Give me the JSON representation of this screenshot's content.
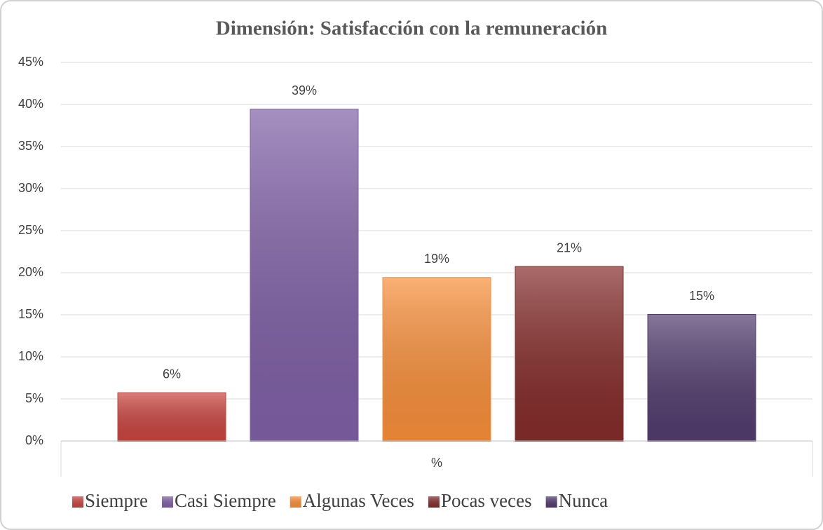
{
  "chart_data": {
    "type": "bar",
    "title": "Dimensión: Satisfacción con la remuneración",
    "categories": [
      "%"
    ],
    "series": [
      {
        "name": "Siempre",
        "color": "#c9443f",
        "values": [
          5.7
        ],
        "value_labels": [
          "6%"
        ]
      },
      {
        "name": "Casi Siempre",
        "color": "#7f60a6",
        "values": [
          39.4
        ],
        "value_labels": [
          "39%"
        ]
      },
      {
        "name": "Algunas Veces",
        "color": "#f88f3a",
        "values": [
          19.4
        ],
        "value_labels": [
          "19%"
        ]
      },
      {
        "name": "Pocas veces",
        "color": "#842c2a",
        "values": [
          20.7
        ],
        "value_labels": [
          "21%"
        ]
      },
      {
        "name": "Nunca",
        "color": "#523c6e",
        "values": [
          15.0
        ],
        "value_labels": [
          "15%"
        ]
      }
    ],
    "ylim": [
      0,
      45
    ],
    "yticks": [
      {
        "value": 0,
        "label": "0%"
      },
      {
        "value": 5,
        "label": "5%"
      },
      {
        "value": 10,
        "label": "10%"
      },
      {
        "value": 15,
        "label": "15%"
      },
      {
        "value": 20,
        "label": "20%"
      },
      {
        "value": 25,
        "label": "25%"
      },
      {
        "value": 30,
        "label": "30%"
      },
      {
        "value": 35,
        "label": "35%"
      },
      {
        "value": 40,
        "label": "40%"
      },
      {
        "value": 45,
        "label": "45%"
      }
    ],
    "grid": true,
    "legend": "bottom"
  }
}
